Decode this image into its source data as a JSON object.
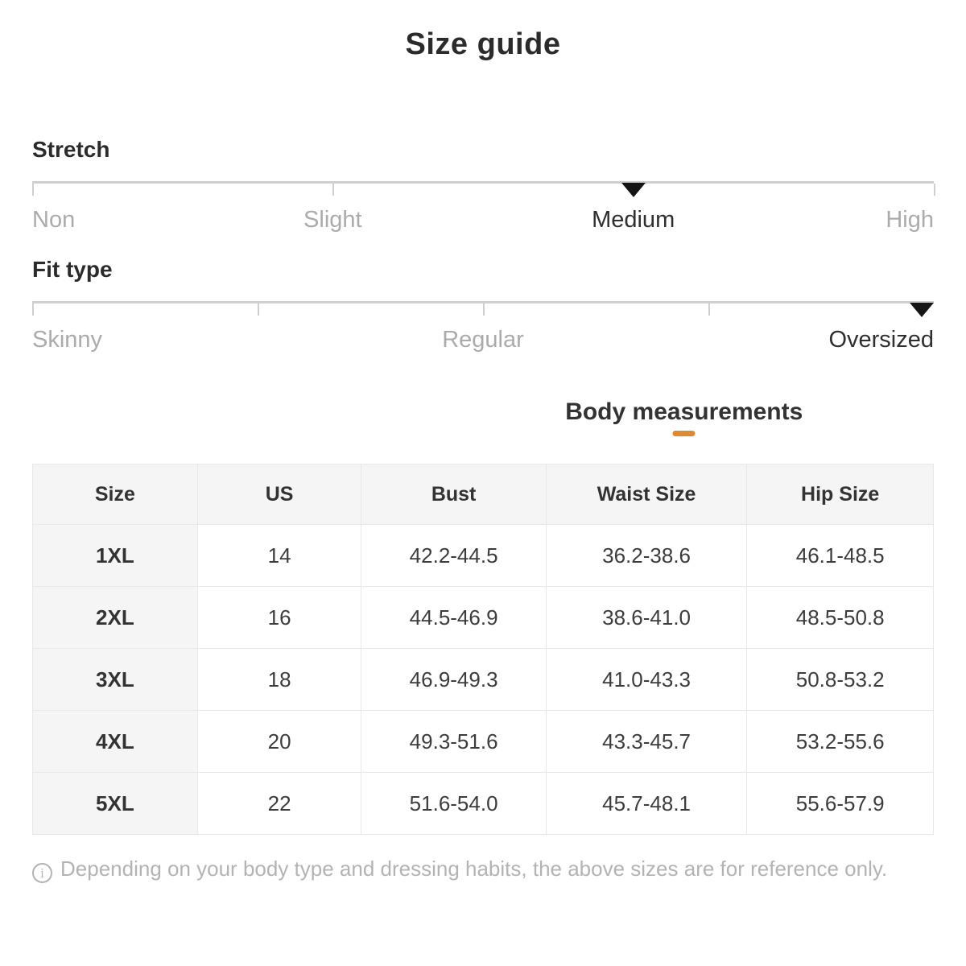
{
  "title": "Size guide",
  "sliders": [
    {
      "label": "Stretch",
      "selected": "Medium",
      "ticks_pct": [
        0,
        33.333,
        100
      ],
      "marker_pct": 66.667,
      "options": [
        {
          "label": "Non",
          "pct": 0,
          "selected": false
        },
        {
          "label": "Slight",
          "pct": 33.333,
          "selected": false
        },
        {
          "label": "Medium",
          "pct": 66.667,
          "selected": true
        },
        {
          "label": "High",
          "pct": 100,
          "selected": false
        }
      ]
    },
    {
      "label": "Fit type",
      "selected": "Oversized",
      "ticks_pct": [
        0,
        25,
        50,
        75
      ],
      "marker_pct": 100,
      "options": [
        {
          "label": "Skinny",
          "pct": 0,
          "selected": false
        },
        {
          "label": "Regular",
          "pct": 50,
          "selected": false
        },
        {
          "label": "Oversized",
          "pct": 100,
          "selected": true
        }
      ]
    }
  ],
  "tabs": {
    "active": "Body measurements"
  },
  "table": {
    "columns": [
      "Size",
      "US",
      "Bust",
      "Waist Size",
      "Hip Size"
    ],
    "rows": [
      [
        "1XL",
        "14",
        "42.2-44.5",
        "36.2-38.6",
        "46.1-48.5"
      ],
      [
        "2XL",
        "16",
        "44.5-46.9",
        "38.6-41.0",
        "48.5-50.8"
      ],
      [
        "3XL",
        "18",
        "46.9-49.3",
        "41.0-43.3",
        "50.8-53.2"
      ],
      [
        "4XL",
        "20",
        "49.3-51.6",
        "43.3-45.7",
        "53.2-55.6"
      ],
      [
        "5XL",
        "22",
        "51.6-54.0",
        "45.7-48.1",
        "55.6-57.9"
      ]
    ]
  },
  "footer": {
    "icon_glyph": "i",
    "note": "Depending on your body type and dressing habits, the above sizes are for reference only."
  },
  "colors": {
    "accent": "#e08a30",
    "selected_text": "#2f2f2f",
    "muted_text": "#ababab"
  }
}
